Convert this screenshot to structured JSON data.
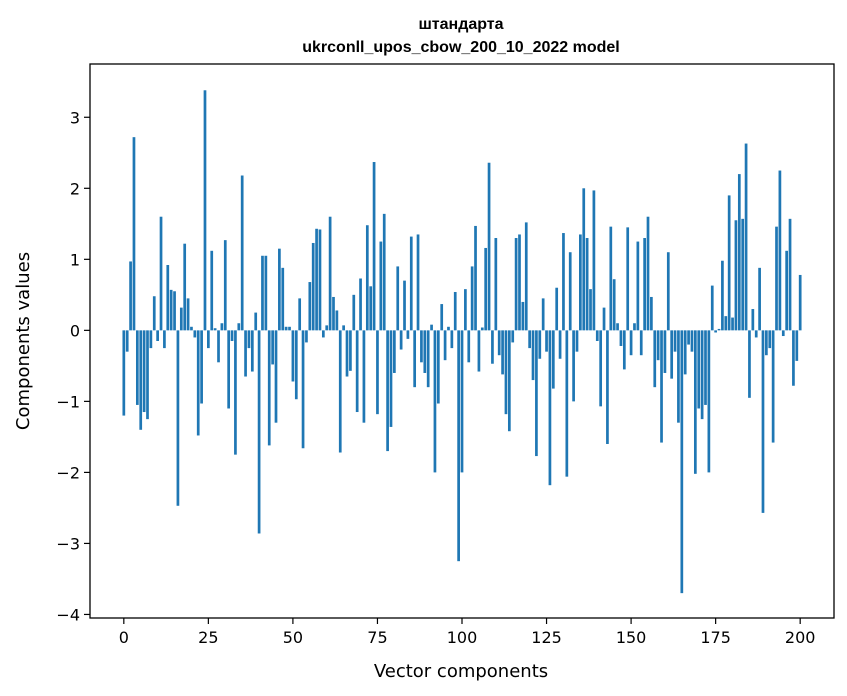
{
  "chart_data": {
    "type": "bar",
    "title": [
      "штандарта",
      "ukrconll_upos_cbow_200_10_2022 model"
    ],
    "xlabel": "Vector components",
    "ylabel": "Components values",
    "xlim": [
      -10,
      210
    ],
    "ylim": [
      -4.05,
      3.75
    ],
    "xticks": [
      0,
      25,
      50,
      75,
      100,
      125,
      150,
      175,
      200
    ],
    "yticks": [
      -4,
      -3,
      -2,
      -1,
      0,
      1,
      2,
      3
    ],
    "grid": false,
    "bar_color": "#1f77b4",
    "values": [
      -1.2,
      -0.3,
      0.97,
      2.72,
      -1.05,
      -1.4,
      -1.15,
      -1.25,
      -0.25,
      0.48,
      -0.15,
      1.6,
      -0.25,
      0.92,
      0.57,
      0.55,
      -2.47,
      0.32,
      1.22,
      0.45,
      0.05,
      -0.1,
      -1.48,
      -1.03,
      3.38,
      -0.25,
      1.12,
      0.03,
      -0.45,
      0.1,
      1.27,
      -1.1,
      -0.15,
      -1.75,
      0.1,
      2.18,
      -0.65,
      -0.25,
      -0.58,
      0.25,
      -2.86,
      1.05,
      1.05,
      -1.62,
      -0.48,
      -1.3,
      1.15,
      0.88,
      0.05,
      0.05,
      -0.72,
      -0.97,
      0.45,
      -1.66,
      -0.17,
      0.68,
      1.23,
      1.43,
      1.42,
      -0.1,
      0.07,
      1.6,
      0.47,
      0.28,
      -1.72,
      0.07,
      -0.65,
      -0.57,
      0.5,
      -1.15,
      0.73,
      -1.3,
      1.48,
      0.62,
      2.37,
      -1.18,
      1.25,
      1.64,
      -1.7,
      -1.36,
      -0.6,
      0.9,
      -0.27,
      0.7,
      -0.12,
      1.32,
      -0.8,
      1.35,
      -0.45,
      -0.6,
      -0.8,
      0.08,
      -2.0,
      -1.03,
      0.37,
      -0.42,
      0.05,
      -0.25,
      0.54,
      -3.25,
      -2.0,
      0.58,
      -0.45,
      0.9,
      1.47,
      -0.58,
      0.04,
      1.16,
      2.36,
      -0.47,
      1.3,
      -0.35,
      -0.62,
      -1.18,
      -1.42,
      -0.17,
      1.3,
      1.35,
      0.4,
      1.52,
      -0.25,
      -0.7,
      -1.77,
      -0.4,
      0.45,
      -0.3,
      -2.18,
      -0.82,
      0.6,
      -0.4,
      1.37,
      -2.06,
      1.1,
      -1.0,
      -0.3,
      1.35,
      2.0,
      1.3,
      0.58,
      1.97,
      -0.15,
      -1.07,
      0.32,
      -1.6,
      1.46,
      0.72,
      0.1,
      -0.22,
      -0.55,
      1.45,
      -0.35,
      0.1,
      1.25,
      -0.35,
      1.3,
      1.6,
      0.47,
      -0.8,
      -0.42,
      -1.58,
      -0.6,
      1.1,
      -0.68,
      -0.3,
      -1.3,
      -3.7,
      -0.62,
      -0.2,
      -0.3,
      -2.02,
      -1.1,
      -1.25,
      -1.05,
      -2.0,
      0.63,
      -0.03,
      0.02,
      0.98,
      0.2,
      1.9,
      0.18,
      1.55,
      2.2,
      1.57,
      2.63,
      -0.95,
      0.3,
      -0.1,
      0.88,
      -2.57,
      -0.35,
      -0.25,
      -1.58,
      1.46,
      2.25,
      -0.08,
      1.12,
      1.57,
      -0.78,
      -0.43,
      0.78
    ]
  }
}
